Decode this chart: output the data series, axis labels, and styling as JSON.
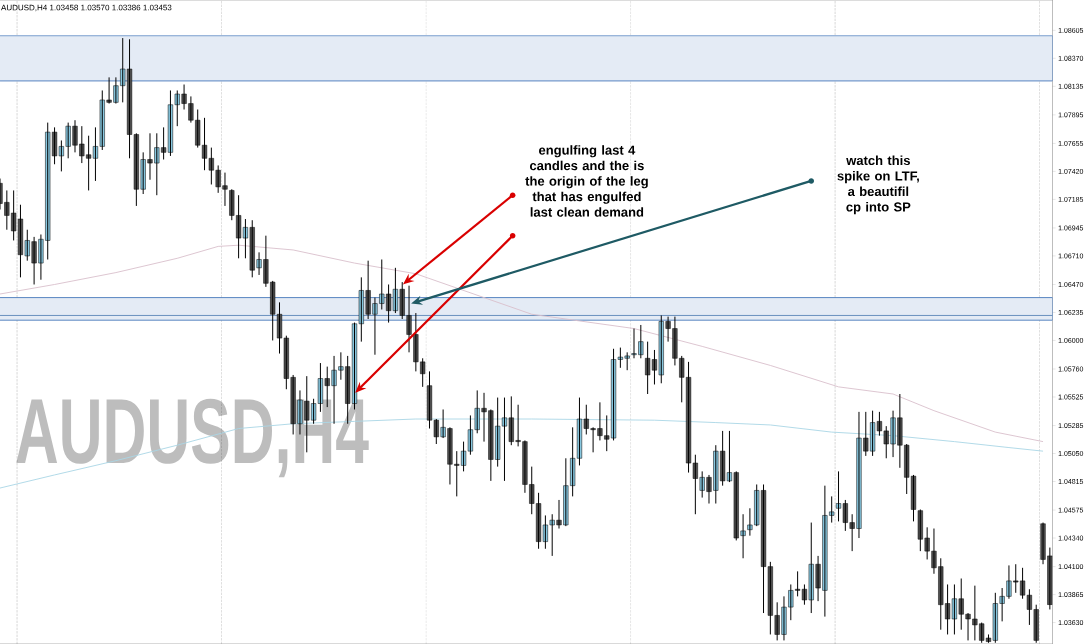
{
  "chart_data": {
    "type": "candlestick",
    "title": "AUDUSD,H4  1.03458 1.03570 1.03386 1.03453",
    "annotations": [
      "AUDUSD,H4",
      "engulfing last 4 candles and the is the origin of the leg that has engulfed last clean demand",
      "watch this spike on LTF, a beautifil cp into SP"
    ],
    "categories": [
      null,
      null,
      null,
      null,
      null,
      null,
      null,
      null,
      null,
      null,
      null,
      null,
      null,
      null,
      null,
      null,
      null,
      null,
      null,
      null,
      null,
      null,
      null,
      null,
      null,
      null,
      null,
      null,
      null,
      null,
      null,
      null,
      null,
      null,
      null,
      null,
      null,
      null,
      null,
      null,
      null,
      null,
      null,
      null,
      null,
      null,
      null,
      null,
      null,
      null,
      null,
      null,
      null,
      null,
      null,
      null,
      null,
      null,
      null,
      null,
      null,
      null,
      null,
      null,
      null,
      null,
      null,
      null,
      null,
      null,
      null,
      null,
      null,
      null,
      null,
      null,
      null,
      null,
      null,
      null,
      null,
      null,
      null,
      null,
      null,
      null,
      null,
      null,
      null,
      null,
      null,
      null,
      null,
      null,
      null,
      null,
      null,
      null,
      null,
      null,
      null,
      null,
      null,
      null,
      null,
      null,
      null,
      null,
      null,
      null,
      null,
      null,
      null,
      null,
      null,
      null,
      null,
      null,
      null,
      null,
      null,
      null,
      null,
      null,
      null,
      null,
      null,
      null,
      null,
      null,
      null,
      null,
      null,
      null,
      null,
      null,
      null,
      null,
      null,
      null,
      null,
      null,
      null,
      null,
      null,
      null,
      null,
      null,
      null,
      null,
      null,
      null,
      null,
      null,
      null
    ],
    "ohlc": [
      [
        1.0732,
        1.0736,
        1.071,
        1.0715
      ],
      [
        1.0716,
        1.0726,
        1.0693,
        1.0705
      ],
      [
        1.0707,
        1.0726,
        1.0684,
        1.0692
      ],
      [
        1.0702,
        1.0714,
        1.0653,
        1.0672
      ],
      [
        1.0671,
        1.0693,
        1.0667,
        1.0684
      ],
      [
        1.0683,
        1.0687,
        1.0647,
        1.0665
      ],
      [
        1.0665,
        1.0689,
        1.0651,
        1.0685
      ],
      [
        1.0684,
        1.0783,
        1.0668,
        1.0775
      ],
      [
        1.0775,
        1.0779,
        1.0748,
        1.0755
      ],
      [
        1.0755,
        1.0768,
        1.0742,
        1.0763
      ],
      [
        1.0763,
        1.0783,
        1.0753,
        1.078
      ],
      [
        1.078,
        1.0785,
        1.0758,
        1.0764
      ],
      [
        1.0765,
        1.078,
        1.0749,
        1.0755
      ],
      [
        1.0756,
        1.0772,
        1.0726,
        1.0753
      ],
      [
        1.0753,
        1.0779,
        1.0734,
        1.0763
      ],
      [
        1.0763,
        1.081,
        1.076,
        1.0802
      ],
      [
        1.0802,
        1.0821,
        1.0799,
        1.08
      ],
      [
        1.08,
        1.0821,
        1.0799,
        1.0814
      ],
      [
        1.0814,
        1.0854,
        1.08,
        1.0828
      ],
      [
        1.0828,
        1.0853,
        1.0753,
        1.0773
      ],
      [
        1.0773,
        1.0774,
        1.0713,
        1.0727
      ],
      [
        1.0727,
        1.0758,
        1.0723,
        1.0752
      ],
      [
        1.0752,
        1.0774,
        1.0735,
        1.0749
      ],
      [
        1.0749,
        1.0774,
        1.0722,
        1.0762
      ],
      [
        1.0762,
        1.0779,
        1.0752,
        1.0758
      ],
      [
        1.0758,
        1.081,
        1.0755,
        1.0798
      ],
      [
        1.0798,
        1.081,
        1.078,
        1.0807
      ],
      [
        1.0807,
        1.0815,
        1.0794,
        1.0799
      ],
      [
        1.0799,
        1.0805,
        1.0783,
        1.0785
      ],
      [
        1.0785,
        1.0794,
        1.0762,
        1.0764
      ],
      [
        1.0764,
        1.0787,
        1.0743,
        1.0753
      ],
      [
        1.0753,
        1.0762,
        1.0731,
        1.0743
      ],
      [
        1.0743,
        1.0747,
        1.0724,
        1.0729
      ],
      [
        1.073,
        1.0741,
        1.0713,
        1.0727
      ],
      [
        1.0726,
        1.0727,
        1.0701,
        1.0705
      ],
      [
        1.0705,
        1.0722,
        1.0669,
        1.0686
      ],
      [
        1.0686,
        1.0702,
        1.0669,
        1.0695
      ],
      [
        1.0695,
        1.0701,
        1.0653,
        1.0659
      ],
      [
        1.0661,
        1.0674,
        1.0655,
        1.0668
      ],
      [
        1.0668,
        1.0688,
        1.0645,
        1.0648
      ],
      [
        1.0649,
        1.065,
        1.06,
        1.0622
      ],
      [
        1.0622,
        1.0632,
        1.0589,
        1.0602
      ],
      [
        1.0602,
        1.0604,
        1.0559,
        1.0568
      ],
      [
        1.0569,
        1.0571,
        1.0521,
        1.053
      ],
      [
        1.053,
        1.0558,
        1.0521,
        1.055
      ],
      [
        1.0549,
        1.057,
        1.0506,
        1.0533
      ],
      [
        1.0533,
        1.0551,
        1.053,
        1.0547
      ],
      [
        1.0547,
        1.0581,
        1.054,
        1.0568
      ],
      [
        1.0568,
        1.0578,
        1.0544,
        1.0562
      ],
      [
        1.0562,
        1.0587,
        1.053,
        1.0575
      ],
      [
        1.0575,
        1.059,
        1.0567,
        1.0578
      ],
      [
        1.0578,
        1.0587,
        1.053,
        1.0547
      ],
      [
        1.0547,
        1.0615,
        1.0542,
        1.0614
      ],
      [
        1.0614,
        1.0653,
        1.0599,
        1.0642
      ],
      [
        1.0642,
        1.0667,
        1.0618,
        1.0622
      ],
      [
        1.0622,
        1.0636,
        1.0588,
        1.0631
      ],
      [
        1.0631,
        1.0668,
        1.0626,
        1.0639
      ],
      [
        1.0639,
        1.0647,
        1.0615,
        1.0625
      ],
      [
        1.0625,
        1.0661,
        1.0623,
        1.0643
      ],
      [
        1.0643,
        1.0649,
        1.0618,
        1.0621
      ],
      [
        1.0621,
        1.0646,
        1.059,
        1.0605
      ],
      [
        1.0605,
        1.0623,
        1.0574,
        1.0582
      ],
      [
        1.0582,
        1.0585,
        1.0561,
        1.0572
      ],
      [
        1.0562,
        1.0574,
        1.0526,
        1.0533
      ],
      [
        1.0533,
        1.0534,
        1.0513,
        1.0519
      ],
      [
        1.0519,
        1.0542,
        1.0518,
        1.0527
      ],
      [
        1.0526,
        1.0527,
        1.0479,
        1.0496
      ],
      [
        1.0496,
        1.0507,
        1.0469,
        1.0495
      ],
      [
        1.0495,
        1.0515,
        1.049,
        1.0507
      ],
      [
        1.0507,
        1.0537,
        1.0504,
        1.0525
      ],
      [
        1.0525,
        1.0558,
        1.0522,
        1.0543
      ],
      [
        1.0543,
        1.0556,
        1.0515,
        1.054
      ],
      [
        1.0541,
        1.0542,
        1.0482,
        1.05
      ],
      [
        1.05,
        1.0552,
        1.0494,
        1.0528
      ],
      [
        1.0528,
        1.0552,
        1.0482,
        1.0535
      ],
      [
        1.0535,
        1.0553,
        1.0512,
        1.0515
      ],
      [
        1.0516,
        1.0546,
        1.0511,
        1.0515
      ],
      [
        1.0515,
        1.0516,
        1.0472,
        1.0479
      ],
      [
        1.0479,
        1.0494,
        1.0454,
        1.0463
      ],
      [
        1.0463,
        1.0472,
        1.0425,
        1.0431
      ],
      [
        1.0431,
        1.0453,
        1.0425,
        1.0445
      ],
      [
        1.0445,
        1.0454,
        1.0419,
        1.0449
      ],
      [
        1.0449,
        1.0466,
        1.0442,
        1.0445
      ],
      [
        1.0445,
        1.0501,
        1.0444,
        1.0478
      ],
      [
        1.0478,
        1.0527,
        1.0469,
        1.0501
      ],
      [
        1.0501,
        1.0552,
        1.0495,
        1.0534
      ],
      [
        1.0534,
        1.0546,
        1.0521,
        1.0526
      ],
      [
        1.0526,
        1.0527,
        1.0506,
        1.0525
      ],
      [
        1.0526,
        1.0548,
        1.0516,
        1.052
      ],
      [
        1.052,
        1.0537,
        1.0507,
        1.0517
      ],
      [
        1.0518,
        1.0593,
        1.0516,
        1.0584
      ],
      [
        1.0584,
        1.0594,
        1.0577,
        1.0586
      ],
      [
        1.0585,
        1.059,
        1.0575,
        1.0587
      ],
      [
        1.0588,
        1.061,
        1.0585,
        1.0589
      ],
      [
        1.0588,
        1.0613,
        1.0585,
        1.0599
      ],
      [
        1.0585,
        1.0599,
        1.0555,
        1.0571
      ],
      [
        1.0584,
        1.0592,
        1.0563,
        1.0575
      ],
      [
        1.0571,
        1.0621,
        1.0564,
        1.0616
      ],
      [
        1.0616,
        1.062,
        1.0599,
        1.061
      ],
      [
        1.061,
        1.062,
        1.0579,
        1.0585
      ],
      [
        1.0585,
        1.0587,
        1.0548,
        1.0569
      ],
      [
        1.0569,
        1.0582,
        1.0489,
        1.0497
      ],
      [
        1.0497,
        1.0504,
        1.0454,
        1.0484
      ],
      [
        1.0474,
        1.049,
        1.0468,
        1.0485
      ],
      [
        1.0485,
        1.0487,
        1.0463,
        1.0473
      ],
      [
        1.0474,
        1.0512,
        1.0463,
        1.0507
      ],
      [
        1.0507,
        1.0524,
        1.0478,
        1.0482
      ],
      [
        1.0482,
        1.0524,
        1.0481,
        1.0489
      ],
      [
        1.0489,
        1.049,
        1.0432,
        1.0434
      ],
      [
        1.0436,
        1.0454,
        1.0417,
        1.044
      ],
      [
        1.0441,
        1.0459,
        1.0436,
        1.0445
      ],
      [
        1.0445,
        1.0479,
        1.0444,
        1.0474
      ],
      [
        1.0474,
        1.0479,
        1.0371,
        1.041
      ],
      [
        1.041,
        1.0414,
        1.0353,
        1.0369
      ],
      [
        1.0369,
        1.038,
        1.0348,
        1.0353
      ],
      [
        1.0353,
        1.0385,
        1.0348,
        1.0376
      ],
      [
        1.0376,
        1.0395,
        1.0365,
        1.039
      ],
      [
        1.0391,
        1.0406,
        1.0385,
        1.039
      ],
      [
        1.0391,
        1.0395,
        1.0378,
        1.0382
      ],
      [
        1.0382,
        1.0447,
        1.0371,
        1.0412
      ],
      [
        1.0412,
        1.0419,
        1.0381,
        1.0392
      ],
      [
        1.039,
        1.0478,
        1.0368,
        1.0453
      ],
      [
        1.0453,
        1.0469,
        1.0447,
        1.0456
      ],
      [
        1.0459,
        1.049,
        1.0448,
        1.0463
      ],
      [
        1.0463,
        1.0466,
        1.044,
        1.0447
      ],
      [
        1.0447,
        1.0454,
        1.0423,
        1.0442
      ],
      [
        1.0442,
        1.054,
        1.0434,
        1.0518
      ],
      [
        1.0518,
        1.054,
        1.0503,
        1.0507
      ],
      [
        1.0507,
        1.0541,
        1.0503,
        1.0531
      ],
      [
        1.0532,
        1.054,
        1.052,
        1.0524
      ],
      [
        1.0524,
        1.0528,
        1.0501,
        1.0513
      ],
      [
        1.0513,
        1.0541,
        1.0502,
        1.0535
      ],
      [
        1.0535,
        1.0555,
        1.0493,
        1.0512
      ],
      [
        1.0512,
        1.0513,
        1.0471,
        1.0485
      ],
      [
        1.0486,
        1.0487,
        1.0448,
        1.0458
      ],
      [
        1.0457,
        1.0458,
        1.0423,
        1.0433
      ],
      [
        1.0434,
        1.0443,
        1.0416,
        1.0423
      ],
      [
        1.0423,
        1.0442,
        1.0404,
        1.0409
      ],
      [
        1.041,
        1.0417,
        1.0357,
        1.0378
      ],
      [
        1.0379,
        1.0395,
        1.0353,
        1.0366
      ],
      [
        1.0366,
        1.0395,
        1.0353,
        1.0383
      ],
      [
        1.0383,
        1.04,
        1.0357,
        1.037
      ],
      [
        1.037,
        1.0371,
        1.0348,
        1.0366
      ],
      [
        1.0366,
        1.0394,
        1.0348,
        1.0361
      ],
      [
        1.0362,
        1.0363,
        1.0346,
        1.0348
      ],
      [
        1.035,
        1.0353,
        1.0346,
        1.0347
      ],
      [
        1.0348,
        1.0388,
        1.0346,
        1.0379
      ],
      [
        1.0379,
        1.0392,
        1.0364,
        1.0385
      ],
      [
        1.0385,
        1.0411,
        1.0383,
        1.0398
      ],
      [
        1.0398,
        1.0412,
        1.0388,
        1.0397
      ],
      [
        1.0398,
        1.0409,
        1.0383,
        1.0386
      ],
      [
        1.0386,
        1.0391,
        1.0361,
        1.0374
      ],
      [
        1.0374,
        1.0378,
        1.0346,
        1.0348
      ],
      [
        1.0446,
        1.0447,
        1.0412,
        1.0416
      ],
      [
        1.0419,
        1.0426,
        1.0374,
        1.0378
      ]
    ],
    "colors": [
      "#505050",
      "#505050",
      "#505050",
      "#505050",
      "#88c8e0",
      "#505050",
      "#88c8e0",
      "#88c8e0",
      "#505050",
      "#88c8e0",
      "#88c8e0",
      "#505050",
      "#505050",
      "#505050",
      "#88c8e0",
      "#88c8e0",
      "#505050",
      "#88c8e0",
      "#88c8e0",
      "#505050",
      "#505050",
      "#88c8e0",
      "#505050",
      "#88c8e0",
      "#505050",
      "#88c8e0",
      "#88c8e0",
      "#505050",
      "#505050",
      "#505050",
      "#505050",
      "#505050",
      "#505050",
      "#505050",
      "#505050",
      "#505050",
      "#88c8e0",
      "#505050",
      "#88c8e0",
      "#505050",
      "#505050",
      "#505050",
      "#505050",
      "#505050",
      "#88c8e0",
      "#505050",
      "#88c8e0",
      "#88c8e0",
      "#505050",
      "#88c8e0",
      "#88c8e0",
      "#505050",
      "#88c8e0",
      "#88c8e0",
      "#505050",
      "#88c8e0",
      "#88c8e0",
      "#505050",
      "#88c8e0",
      "#505050",
      "#505050",
      "#505050",
      "#505050",
      "#505050",
      "#505050",
      "#88c8e0",
      "#505050",
      "#505050",
      "#88c8e0",
      "#88c8e0",
      "#88c8e0",
      "#505050",
      "#505050",
      "#88c8e0",
      "#88c8e0",
      "#505050",
      "#505050",
      "#505050",
      "#505050",
      "#505050",
      "#88c8e0",
      "#88c8e0",
      "#505050",
      "#88c8e0",
      "#88c8e0",
      "#88c8e0",
      "#505050",
      "#505050",
      "#505050",
      "#505050",
      "#88c8e0",
      "#88c8e0",
      "#88c8e0",
      "#88c8e0",
      "#88c8e0",
      "#505050",
      "#505050",
      "#88c8e0",
      "#505050",
      "#505050",
      "#505050",
      "#505050",
      "#505050",
      "#88c8e0",
      "#505050",
      "#88c8e0",
      "#505050",
      "#88c8e0",
      "#505050",
      "#88c8e0",
      "#88c8e0",
      "#88c8e0",
      "#505050",
      "#505050",
      "#505050",
      "#88c8e0",
      "#88c8e0",
      "#505050",
      "#505050",
      "#88c8e0",
      "#505050",
      "#88c8e0",
      "#88c8e0",
      "#88c8e0",
      "#505050",
      "#505050",
      "#88c8e0",
      "#505050",
      "#88c8e0",
      "#505050",
      "#505050",
      "#88c8e0",
      "#505050",
      "#505050",
      "#505050",
      "#505050",
      "#505050",
      "#505050",
      "#505050",
      "#505050",
      "#88c8e0",
      "#505050",
      "#505050",
      "#505050",
      "#505050",
      "#505050",
      "#88c8e0",
      "#88c8e0",
      "#88c8e0",
      "#505050",
      "#505050",
      "#505050",
      "#505050",
      "#505050",
      "#505050"
    ],
    "series": [
      {
        "type": "line",
        "color": "#d9bfcc",
        "values": [
          1.0639,
          null,
          null,
          null,
          null,
          null,
          null,
          null,
          1.0647,
          null,
          null,
          null,
          null,
          null,
          null,
          null,
          null,
          1.0657,
          null,
          null,
          null,
          null,
          null,
          null,
          null,
          null,
          1.0669,
          null,
          null,
          null,
          null,
          null,
          1.0679,
          null,
          null,
          1.068,
          null,
          null,
          null,
          null,
          null,
          null,
          null,
          1.0676,
          null,
          null,
          null,
          null,
          null,
          null,
          null,
          null,
          1.0665,
          null,
          null,
          null,
          null,
          null,
          null,
          null,
          null,
          1.0656,
          null,
          null,
          null,
          null,
          null,
          1.0644,
          null,
          null,
          null,
          null,
          null,
          null,
          null,
          null,
          null,
          null,
          1.0622,
          null,
          null,
          null,
          null,
          null,
          null,
          null,
          null,
          null,
          null,
          null,
          null,
          null,
          null,
          1.061,
          null,
          null,
          null,
          null,
          null,
          null,
          null,
          null,
          null,
          1.0595,
          null,
          null,
          null,
          null,
          null,
          null,
          null,
          null,
          null,
          1.0579,
          null,
          null,
          null,
          null,
          null,
          null,
          null,
          null,
          null,
          1.0561,
          null,
          null,
          null,
          null,
          null,
          null,
          null,
          1.0555,
          null,
          null,
          null,
          null,
          null,
          1.0541,
          null,
          null,
          null,
          null,
          null,
          null,
          null,
          null,
          1.0523,
          null,
          null,
          null,
          null,
          null,
          null,
          1.0515,
          null
        ]
      },
      {
        "type": "line",
        "color": "#a9d6e5",
        "values": [
          1.0476,
          null,
          null,
          null,
          null,
          null,
          null,
          null,
          1.0487,
          null,
          null,
          null,
          null,
          null,
          null,
          null,
          null,
          1.0499,
          null,
          null,
          null,
          null,
          null,
          null,
          null,
          null,
          1.0512,
          null,
          null,
          null,
          null,
          null,
          null,
          null,
          null,
          1.0526,
          null,
          null,
          null,
          null,
          null,
          null,
          null,
          1.053,
          null,
          null,
          null,
          null,
          null,
          null,
          null,
          null,
          1.0532,
          null,
          null,
          null,
          null,
          null,
          null,
          null,
          null,
          1.0534,
          null,
          null,
          null,
          null,
          null,
          null,
          null,
          null,
          null,
          null,
          null,
          null,
          null,
          null,
          null,
          null,
          1.0534,
          null,
          null,
          null,
          null,
          null,
          null,
          null,
          null,
          null,
          null,
          null,
          null,
          null,
          null,
          null,
          null,
          null,
          1.0533,
          null,
          null,
          null,
          null,
          null,
          null,
          null,
          null,
          1.0531,
          null,
          null,
          null,
          null,
          null,
          null,
          null,
          1.0529,
          null,
          null,
          null,
          null,
          null,
          null,
          null,
          null,
          1.0523,
          null,
          null,
          null,
          null,
          null,
          null,
          null,
          null,
          1.052,
          null,
          null,
          null,
          null,
          null,
          null,
          null,
          null,
          1.0515,
          null,
          null,
          null,
          null,
          null,
          null,
          null,
          1.051,
          null,
          null,
          null,
          null,
          1.0507,
          null
        ]
      }
    ],
    "bands": [
      {
        "axis": "y",
        "from": 1.0818,
        "to": 1.0856,
        "color": "#e4ebf5"
      },
      {
        "axis": "y",
        "from": 1.0617,
        "to": 1.0636,
        "color": "#e4ebf5"
      }
    ],
    "ref_lines": [
      {
        "axis": "y",
        "value": 1.0621,
        "color": "#4a78b0"
      }
    ],
    "ylim": [
      1.0345,
      1.0886
    ],
    "yticks": [
      1.08605,
      {
        "value": 1.0837,
        "label": "1.08370"
      },
      1.08135,
      1.07895,
      1.07655,
      {
        "value": 1.0742,
        "label": "1.07420"
      },
      1.07185,
      1.06945,
      {
        "value": 1.0671,
        "label": "1.06710"
      },
      {
        "value": 1.0647,
        "label": "1.06470"
      },
      1.06235,
      {
        "value": 1.06,
        "label": "1.06000"
      },
      {
        "value": 1.0576,
        "label": "1.05760"
      },
      1.05525,
      1.05285,
      {
        "value": 1.0505,
        "label": "1.05050"
      },
      1.04815,
      1.04575,
      {
        "value": 1.0434,
        "label": "1.04340"
      },
      {
        "value": 1.041,
        "label": "1.04100"
      },
      1.03865,
      {
        "value": 1.0363,
        "label": "1.03630"
      }
    ]
  }
}
